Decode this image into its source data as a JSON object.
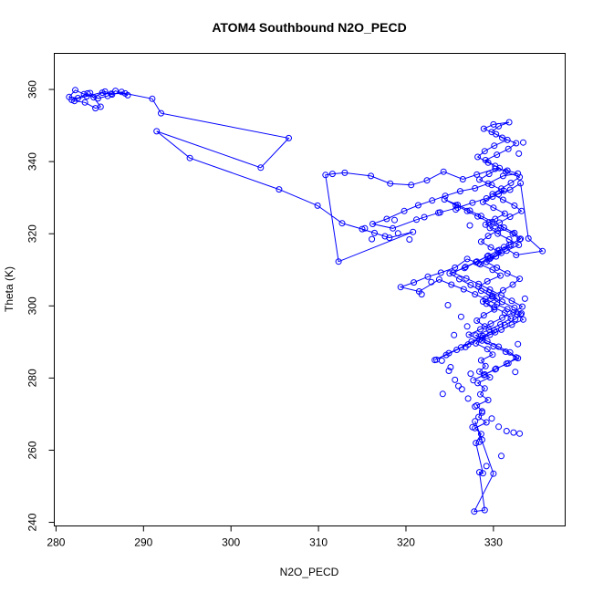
{
  "chart_data": {
    "type": "scatter",
    "title": "ATOM4 Southbound N2O_PECD",
    "xlabel": "N2O_PECD",
    "ylabel": "Theta (K)",
    "xlim": [
      279.8,
      338.2
    ],
    "ylim": [
      239.0,
      370.0
    ],
    "xticks": [
      280,
      290,
      300,
      310,
      320,
      330
    ],
    "yticks": [
      240,
      260,
      280,
      300,
      320,
      340,
      360
    ],
    "grid": false,
    "color": "#0000ff",
    "style": "points-connected-by-lines",
    "series": [
      {
        "name": "",
        "x": [
          283.6,
          282.5,
          281.5,
          282.2,
          283.2,
          284.3,
          285.3,
          286.4,
          287.5,
          288.2,
          286.8,
          285.9,
          284.8,
          283.9,
          285.1,
          284.5,
          283.3,
          282.1,
          281.8,
          283.5,
          285.6,
          286.3,
          287.9,
          291.0,
          292.0,
          306.6,
          303.4,
          291.5,
          295.3,
          305.5,
          309.9,
          312.7,
          315.0,
          316.4,
          318.1,
          320.8,
          312.3,
          310.8,
          311.6,
          313.0,
          316.0,
          318.2,
          320.6,
          322.4,
          324.3,
          326.5,
          328.1,
          330.2,
          331.6,
          332.8,
          331.1,
          329.4,
          327.9,
          326.2,
          324.5,
          323.0,
          321.4,
          319.8,
          317.8,
          316.2,
          318.5,
          321.2,
          323.7,
          325.9,
          327.6,
          329.2,
          330.6,
          331.9,
          333.1,
          334.0,
          335.6,
          332.6,
          331.2,
          329.7,
          328.3,
          327.0,
          325.6,
          324.0,
          322.5,
          320.9,
          319.4,
          321.5,
          323.8,
          325.2,
          326.6,
          327.9,
          329.1,
          330.4,
          331.6,
          332.7,
          333.4,
          332.1,
          330.9,
          329.6,
          328.4,
          327.1,
          325.8,
          324.6,
          323.3,
          324.9,
          326.3,
          327.5,
          328.8,
          330.1,
          331.3,
          332.5,
          333.2,
          332.4,
          331.0,
          329.8,
          328.6,
          327.4,
          326.1,
          325.0,
          326.7,
          328.0,
          329.3,
          330.5,
          331.8,
          333.0,
          332.2,
          330.8,
          329.5,
          328.2,
          327.0,
          325.7,
          324.4,
          325.9,
          327.3,
          328.6,
          329.9,
          331.2,
          332.4,
          333.1,
          332.0,
          330.7,
          329.4,
          328.1,
          326.8,
          325.4,
          326.9,
          328.3,
          329.6,
          330.9,
          332.1,
          333.3,
          332.3,
          331.0,
          329.7,
          328.5,
          327.2,
          328.7,
          330.0,
          331.4,
          332.6,
          331.7,
          330.3,
          329.0,
          327.7,
          328.9,
          330.2,
          331.5,
          332.8,
          331.9,
          330.6,
          329.3,
          328.0,
          329.5,
          330.8,
          332.0,
          331.3,
          330.1,
          328.8,
          329.9,
          331.1,
          332.2,
          333.0,
          331.6,
          330.4,
          329.2,
          330.3,
          331.5,
          332.9,
          331.8,
          330.5,
          329.6,
          330.7,
          331.9,
          333.2,
          332.4,
          331.1,
          329.9,
          330.9,
          332.0,
          333.0,
          331.4,
          330.2,
          329.1,
          330.4,
          331.7,
          332.6,
          331.0,
          329.8,
          330.6,
          331.8,
          330.0,
          328.9,
          330.3,
          331.6,
          330.1,
          329.0,
          328.2,
          329.4,
          330.7,
          329.5,
          328.4,
          329.8,
          331.2,
          329.9,
          328.8,
          330.0,
          331.3,
          330.2,
          329.1,
          330.5,
          329.4,
          328.6,
          329.7,
          330.9,
          329.6,
          328.5,
          329.9,
          330.8,
          329.3,
          328.3,
          329.5,
          330.4,
          329.2,
          330.1,
          328.9,
          328.1,
          329.0,
          330.2,
          328.7,
          328.0,
          329.3,
          329.9,
          328.6,
          329.1,
          328.4,
          329.6,
          328.2,
          329.0,
          328.5,
          329.4,
          328.1,
          328.7,
          328.3,
          329.2,
          327.9,
          328.6,
          328.0,
          328.8,
          328.4,
          329.0,
          327.8,
          330.0,
          327.9,
          328.7
        ],
        "y": [
          358.9,
          357.6,
          357.9,
          359.8,
          358.7,
          357.8,
          359.1,
          358.6,
          359.3,
          358.4,
          359.6,
          358.2,
          357.5,
          359.0,
          355.2,
          354.8,
          356.4,
          356.8,
          357.1,
          358.1,
          359.4,
          358.8,
          358.9,
          357.4,
          353.4,
          346.5,
          338.3,
          348.4,
          341.0,
          332.3,
          327.8,
          322.9,
          321.3,
          320.2,
          318.9,
          320.5,
          312.3,
          336.3,
          336.6,
          336.9,
          336.0,
          333.9,
          333.5,
          334.8,
          337.2,
          335.1,
          336.4,
          338.0,
          337.5,
          336.7,
          336.0,
          333.9,
          332.6,
          331.8,
          330.5,
          329.2,
          327.9,
          326.3,
          324.1,
          322.7,
          321.5,
          323.9,
          325.8,
          327.2,
          328.6,
          329.8,
          331.0,
          332.2,
          334.0,
          318.7,
          315.2,
          314.1,
          316.3,
          313.4,
          311.8,
          313.0,
          310.6,
          309.2,
          308.1,
          306.5,
          305.2,
          304.0,
          307.3,
          305.9,
          304.6,
          303.2,
          301.9,
          300.4,
          299.1,
          297.6,
          296.2,
          294.8,
          293.4,
          292.0,
          290.7,
          289.3,
          287.8,
          286.4,
          285.0,
          286.9,
          288.5,
          290.1,
          291.6,
          293.2,
          294.7,
          296.3,
          297.9,
          299.5,
          301.1,
          302.6,
          304.2,
          305.8,
          307.4,
          309.0,
          310.5,
          312.1,
          313.7,
          315.3,
          316.9,
          318.4,
          320.0,
          321.6,
          323.2,
          324.8,
          326.3,
          327.9,
          329.5,
          328.0,
          326.4,
          324.9,
          323.3,
          321.7,
          320.2,
          318.6,
          317.0,
          315.5,
          313.9,
          312.3,
          310.8,
          309.2,
          307.6,
          306.1,
          304.5,
          302.9,
          301.4,
          299.8,
          298.2,
          296.7,
          295.1,
          293.5,
          292.0,
          290.4,
          288.8,
          287.3,
          285.7,
          284.1,
          282.6,
          281.0,
          279.4,
          280.8,
          282.4,
          284.0,
          285.5,
          287.1,
          288.7,
          290.2,
          291.8,
          293.4,
          294.9,
          296.5,
          298.1,
          299.6,
          301.2,
          302.8,
          304.3,
          305.9,
          307.5,
          309.0,
          310.6,
          312.2,
          313.7,
          315.3,
          316.9,
          318.4,
          320.0,
          321.6,
          323.1,
          324.7,
          326.3,
          327.8,
          329.4,
          331.0,
          332.5,
          334.1,
          335.7,
          337.2,
          338.8,
          340.4,
          341.9,
          343.5,
          345.1,
          346.6,
          348.2,
          349.8,
          350.9,
          350.3,
          349.1,
          347.6,
          346.0,
          344.4,
          342.9,
          341.3,
          339.7,
          338.2,
          336.6,
          335.0,
          333.5,
          331.9,
          330.3,
          328.8,
          327.2,
          325.6,
          324.1,
          322.5,
          320.9,
          319.4,
          317.8,
          316.2,
          314.7,
          313.1,
          311.5,
          310.0,
          308.4,
          306.8,
          305.3,
          303.7,
          302.1,
          300.6,
          299.0,
          297.4,
          295.9,
          294.3,
          292.7,
          291.2,
          289.6,
          288.0,
          286.5,
          284.9,
          283.3,
          281.8,
          280.2,
          278.6,
          277.1,
          275.5,
          273.9,
          272.4,
          270.8,
          269.2,
          267.7,
          266.1,
          264.5,
          262.0,
          253.6,
          253.9,
          243.4,
          243.0,
          253.5,
          268.0,
          262.9
        ],
        "extra_points": {
          "x": [
            324.2,
            326.0,
            327.4,
            325.1,
            323.5,
            326.8,
            325.5,
            327.0,
            326.3,
            324.8,
            322.9,
            321.8,
            320.4,
            319.1,
            317.6,
            316.1,
            315.3,
            318.7,
            322.1,
            323.9,
            325.7,
            327.3,
            332.9,
            333.4,
            333.0,
            332.3,
            331.5,
            330.6,
            329.8,
            328.7,
            327.9,
            327.1,
            326.4,
            325.6,
            324.9,
            324.1,
            333.6,
            333.1,
            332.8,
            332.5,
            330.9,
            329.2,
            328.4,
            327.6
          ],
          "y": [
            275.6,
            277.8,
            281.2,
            283.0,
            285.1,
            288.6,
            291.9,
            294.3,
            297.0,
            300.2,
            306.6,
            303.2,
            318.4,
            320.1,
            319.3,
            318.5,
            321.5,
            323.8,
            324.6,
            325.9,
            326.7,
            322.3,
            342.2,
            345.3,
            264.6,
            264.9,
            265.3,
            266.5,
            268.8,
            270.4,
            272.1,
            274.3,
            276.9,
            279.5,
            282.0,
            284.8,
            302.0,
            297.6,
            289.4,
            281.7,
            258.4,
            255.6,
            262.3,
            266.4
          ]
        }
      }
    ]
  }
}
